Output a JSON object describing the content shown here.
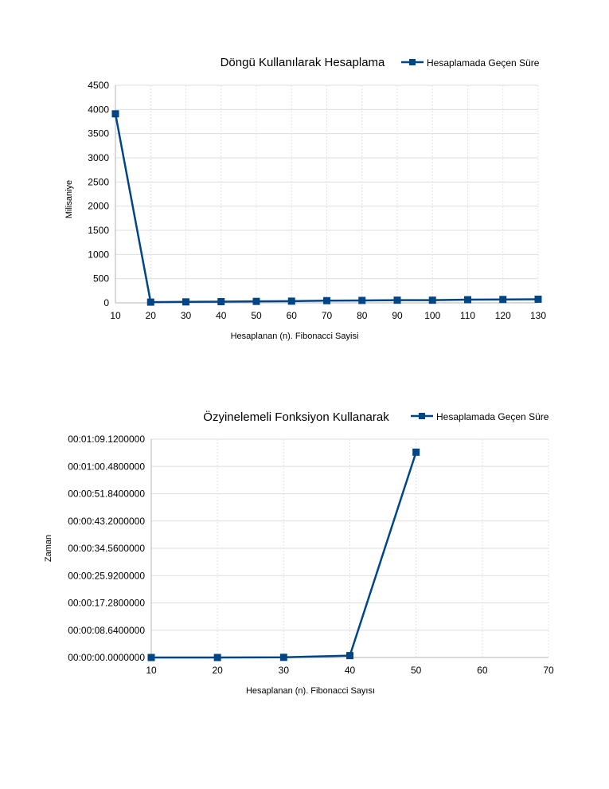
{
  "chart_data": [
    {
      "type": "line",
      "title": "Döngü Kullanılarak Hesaplama",
      "xlabel": "Hesaplanan (n). Fibonacci Sayisi",
      "ylabel": "Milisaniye",
      "x": [
        10,
        20,
        30,
        40,
        50,
        60,
        70,
        80,
        90,
        100,
        110,
        120,
        130
      ],
      "x_ticks": [
        "10",
        "20",
        "30",
        "40",
        "50",
        "60",
        "70",
        "80",
        "90",
        "100",
        "110",
        "120",
        "130"
      ],
      "y_ticks": [
        "0",
        "500",
        "1000",
        "1500",
        "2000",
        "2500",
        "3000",
        "3500",
        "4000",
        "4500"
      ],
      "ylim": [
        0,
        4500
      ],
      "series": [
        {
          "name": "Hesaplamada Geçen Süre",
          "color": "#004586",
          "marker": "square",
          "values": [
            3910,
            15,
            20,
            25,
            30,
            35,
            45,
            50,
            55,
            55,
            65,
            70,
            75
          ]
        }
      ],
      "grid": true,
      "legend_position": "top-right"
    },
    {
      "type": "line",
      "title": "Özyinelemeli Fonksiyon Kullanarak",
      "xlabel": "Hesaplanan (n). Fibonacci Sayısı",
      "ylabel": "Zaman",
      "x": [
        10,
        20,
        30,
        40,
        50
      ],
      "x_ticks": [
        "10",
        "20",
        "30",
        "40",
        "50",
        "60",
        "70"
      ],
      "xlim": [
        10,
        70
      ],
      "y_ticks": [
        "00:00:00.0000000",
        "00:00:08.6400000",
        "00:00:17.2800000",
        "00:00:25.9200000",
        "00:00:34.5600000",
        "00:00:43.2000000",
        "00:00:51.8400000",
        "00:01:00.4800000",
        "00:01:09.1200000"
      ],
      "ylim_seconds": [
        0,
        69.12
      ],
      "series": [
        {
          "name": "Hesaplamada Geçen Süre",
          "color": "#004586",
          "marker": "square",
          "values_seconds": [
            0.0,
            0.0,
            0.05,
            0.6,
            65.0
          ]
        }
      ],
      "grid": true,
      "legend_position": "top-right"
    }
  ]
}
